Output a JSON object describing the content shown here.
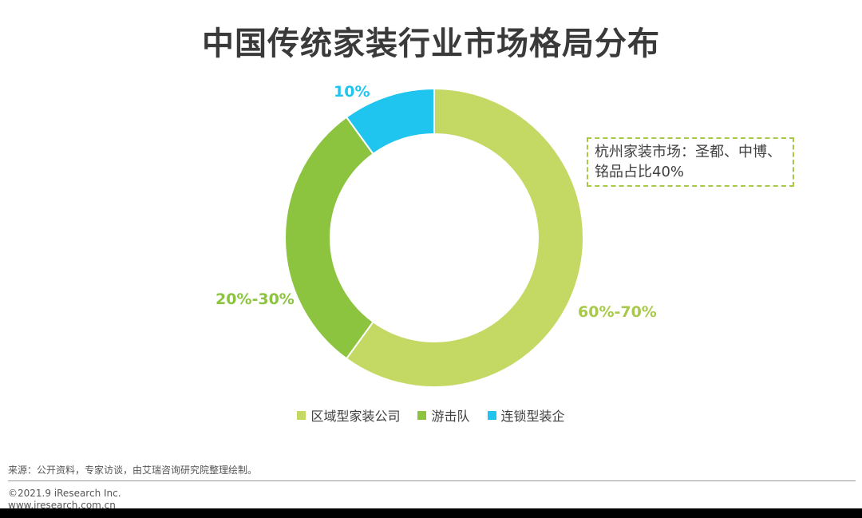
{
  "page": {
    "title": "中国传统家装行业市场格局分布",
    "callout": "杭州家装市场：圣都、中博、铭品占比40%",
    "source": "来源：公开资料，专家访谈，由艾瑞咨询研究院整理绘制。",
    "copyright": "©2021.9 iResearch Inc.",
    "website": "www.iresearch.com.cn"
  },
  "chart_data": {
    "type": "pie",
    "style": "donut",
    "title": "中国传统家装行业市场格局分布",
    "categories": [
      "区域型家装公司",
      "游击队",
      "连锁型装企"
    ],
    "values": [
      60,
      30,
      10
    ],
    "labels": [
      "60%-70%",
      "20%-30%",
      "10%"
    ],
    "colors": [
      "#c3d964",
      "#8cc43f",
      "#1fc5ef"
    ],
    "legend": "bottom",
    "annotation": "杭州家装市场：圣都、中博、铭品占比40%"
  }
}
